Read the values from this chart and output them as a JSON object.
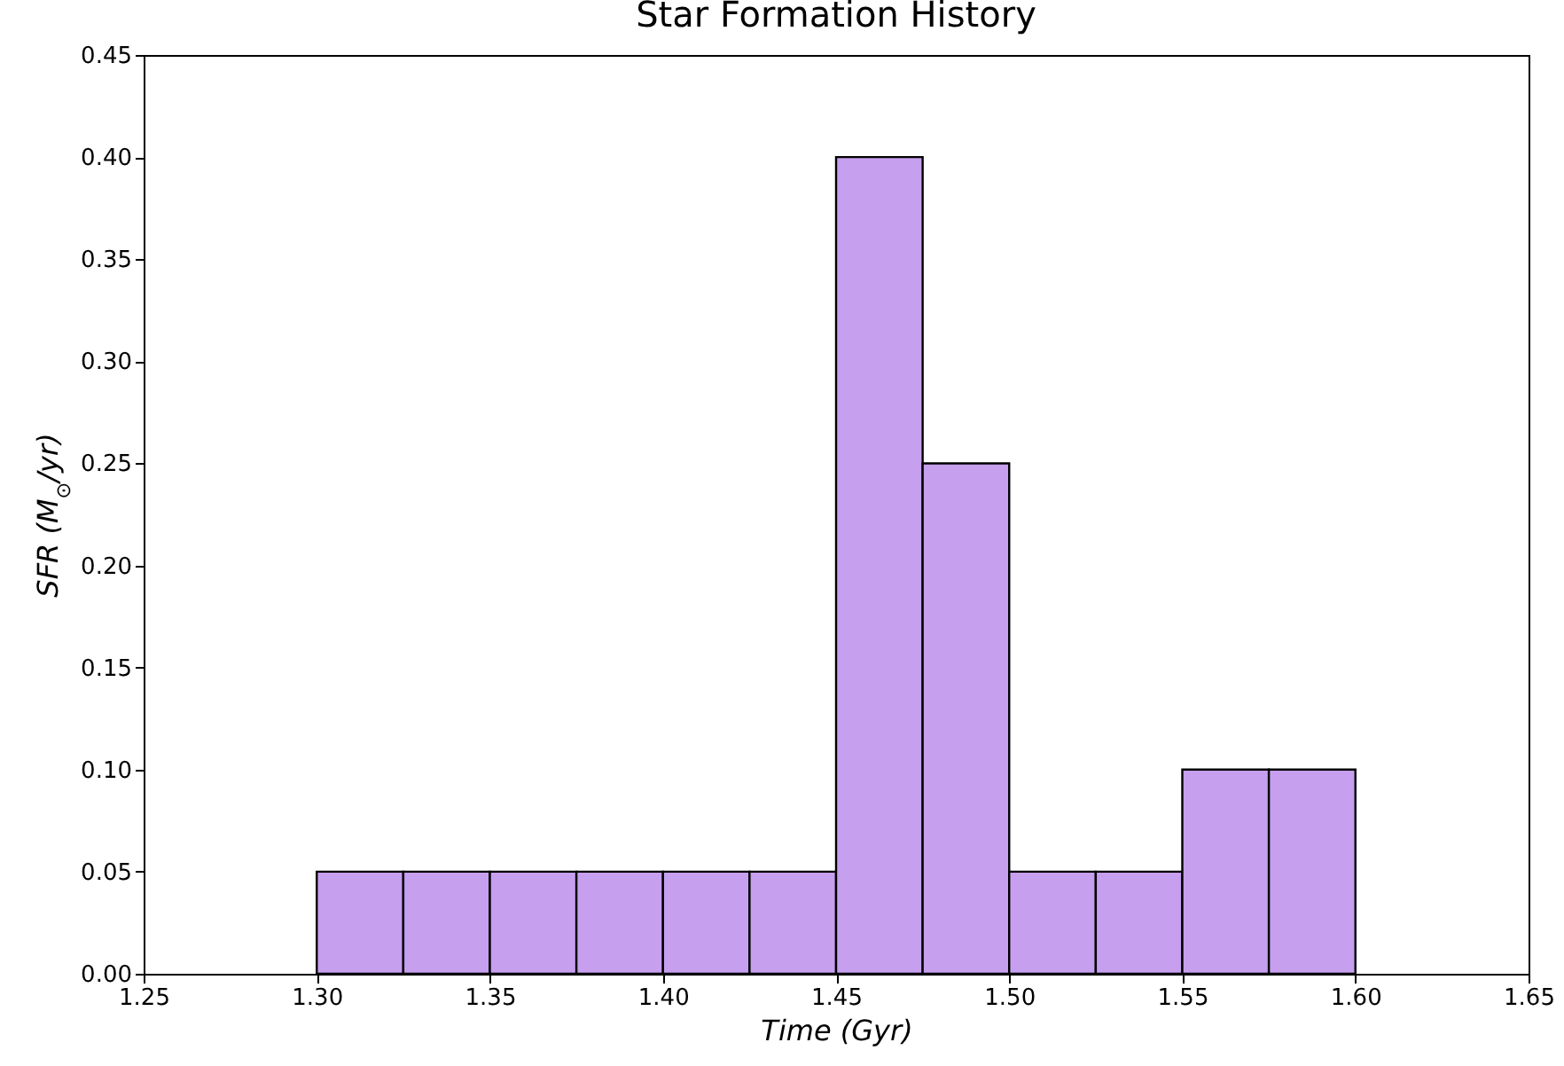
{
  "chart_data": {
    "type": "histogram",
    "title": "Star Formation History",
    "xlabel": "Time (Gyr)",
    "ylabel": "SFR (M$_{⊙}$/yr)",
    "bins": [
      1.3,
      1.325,
      1.35,
      1.375,
      1.4,
      1.425,
      1.45,
      1.475,
      1.5,
      1.525,
      1.55,
      1.575,
      1.6
    ],
    "values": [
      0.05,
      0.05,
      0.05,
      0.05,
      0.05,
      0.05,
      0.4,
      0.25,
      0.05,
      0.05,
      0.1,
      0.1
    ],
    "color": "#c79fef",
    "grid": false,
    "xlim": [
      1.25,
      1.65
    ],
    "xticks": [
      {
        "value": 1.25,
        "label": "1.25"
      },
      {
        "value": 1.3,
        "label": "1.30"
      },
      {
        "value": 1.35,
        "label": "1.35"
      },
      {
        "value": 1.4,
        "label": "1.40"
      },
      {
        "value": 1.45,
        "label": "1.45"
      },
      {
        "value": 1.5,
        "label": "1.50"
      },
      {
        "value": 1.55,
        "label": "1.55"
      },
      {
        "value": 1.6,
        "label": "1.60"
      },
      {
        "value": 1.65,
        "label": "1.65"
      }
    ],
    "ylim": [
      0,
      0.45
    ],
    "yticks": [
      {
        "value": 0,
        "label": "0.00"
      },
      {
        "value": 0.05,
        "label": "0.05"
      },
      {
        "value": 0.1,
        "label": "0.10"
      },
      {
        "value": 0.15,
        "label": "0.15"
      },
      {
        "value": 0.2,
        "label": "0.20"
      },
      {
        "value": 0.25,
        "label": "0.25"
      },
      {
        "value": 0.3,
        "label": "0.30"
      },
      {
        "value": 0.35,
        "label": "0.35"
      },
      {
        "value": 0.4,
        "label": "0.40"
      },
      {
        "value": 0.45,
        "label": "0.45"
      }
    ]
  }
}
